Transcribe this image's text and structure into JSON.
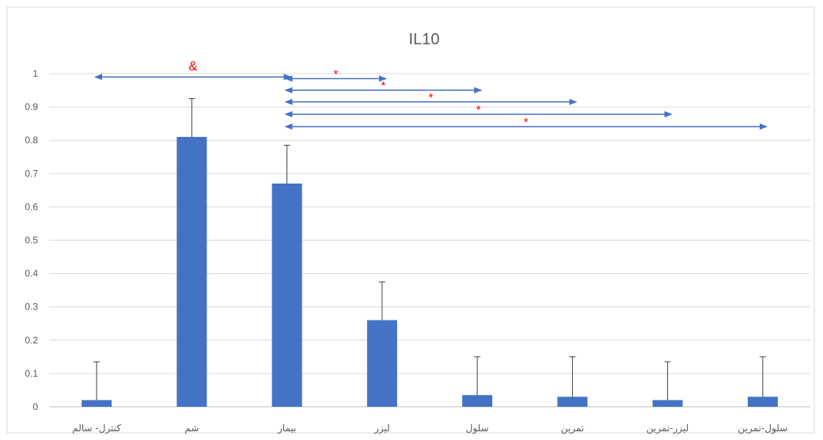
{
  "chart_data": {
    "type": "bar",
    "title": "IL10",
    "xlabel": "",
    "ylabel": "",
    "ylim": [
      0,
      1
    ],
    "yticks": [
      "0",
      "0.1",
      "0.2",
      "0.3",
      "0.4",
      "0.5",
      "0.6",
      "0.7",
      "0.8",
      "0.9",
      "1"
    ],
    "grid": true,
    "legend": "none",
    "categories": [
      "کنترل- سالم",
      "شم",
      "بیمار",
      "لیزر",
      "سلول",
      "تمرین",
      "لیزر-تمرین",
      "سلول-تمرین"
    ],
    "series": [
      {
        "values": [
          0.02,
          0.81,
          0.67,
          0.26,
          0.035,
          0.03,
          0.02,
          0.03
        ],
        "error_upper": [
          0.115,
          0.115,
          0.115,
          0.115,
          0.115,
          0.12,
          0.115,
          0.12
        ]
      }
    ],
    "bar_color": "#4472c4",
    "grid_color": "#d9d9d9",
    "annotations": [
      {
        "symbol": "&",
        "from": 0,
        "to": 2,
        "y": 0.99,
        "color": "#ff0000"
      },
      {
        "symbol": "*",
        "from": 2,
        "to": 3,
        "y": 0.985,
        "color": "#ff0000"
      },
      {
        "symbol": "*",
        "from": 2,
        "to": 4,
        "y": 0.95,
        "color": "#ff0000"
      },
      {
        "symbol": "*",
        "from": 2,
        "to": 5,
        "y": 0.915,
        "color": "#ff0000"
      },
      {
        "symbol": "*",
        "from": 2,
        "to": 6,
        "y": 0.878,
        "color": "#ff0000"
      },
      {
        "symbol": "*",
        "from": 2,
        "to": 7,
        "y": 0.841,
        "color": "#ff0000"
      }
    ],
    "arrow_color": "#4472c4"
  }
}
